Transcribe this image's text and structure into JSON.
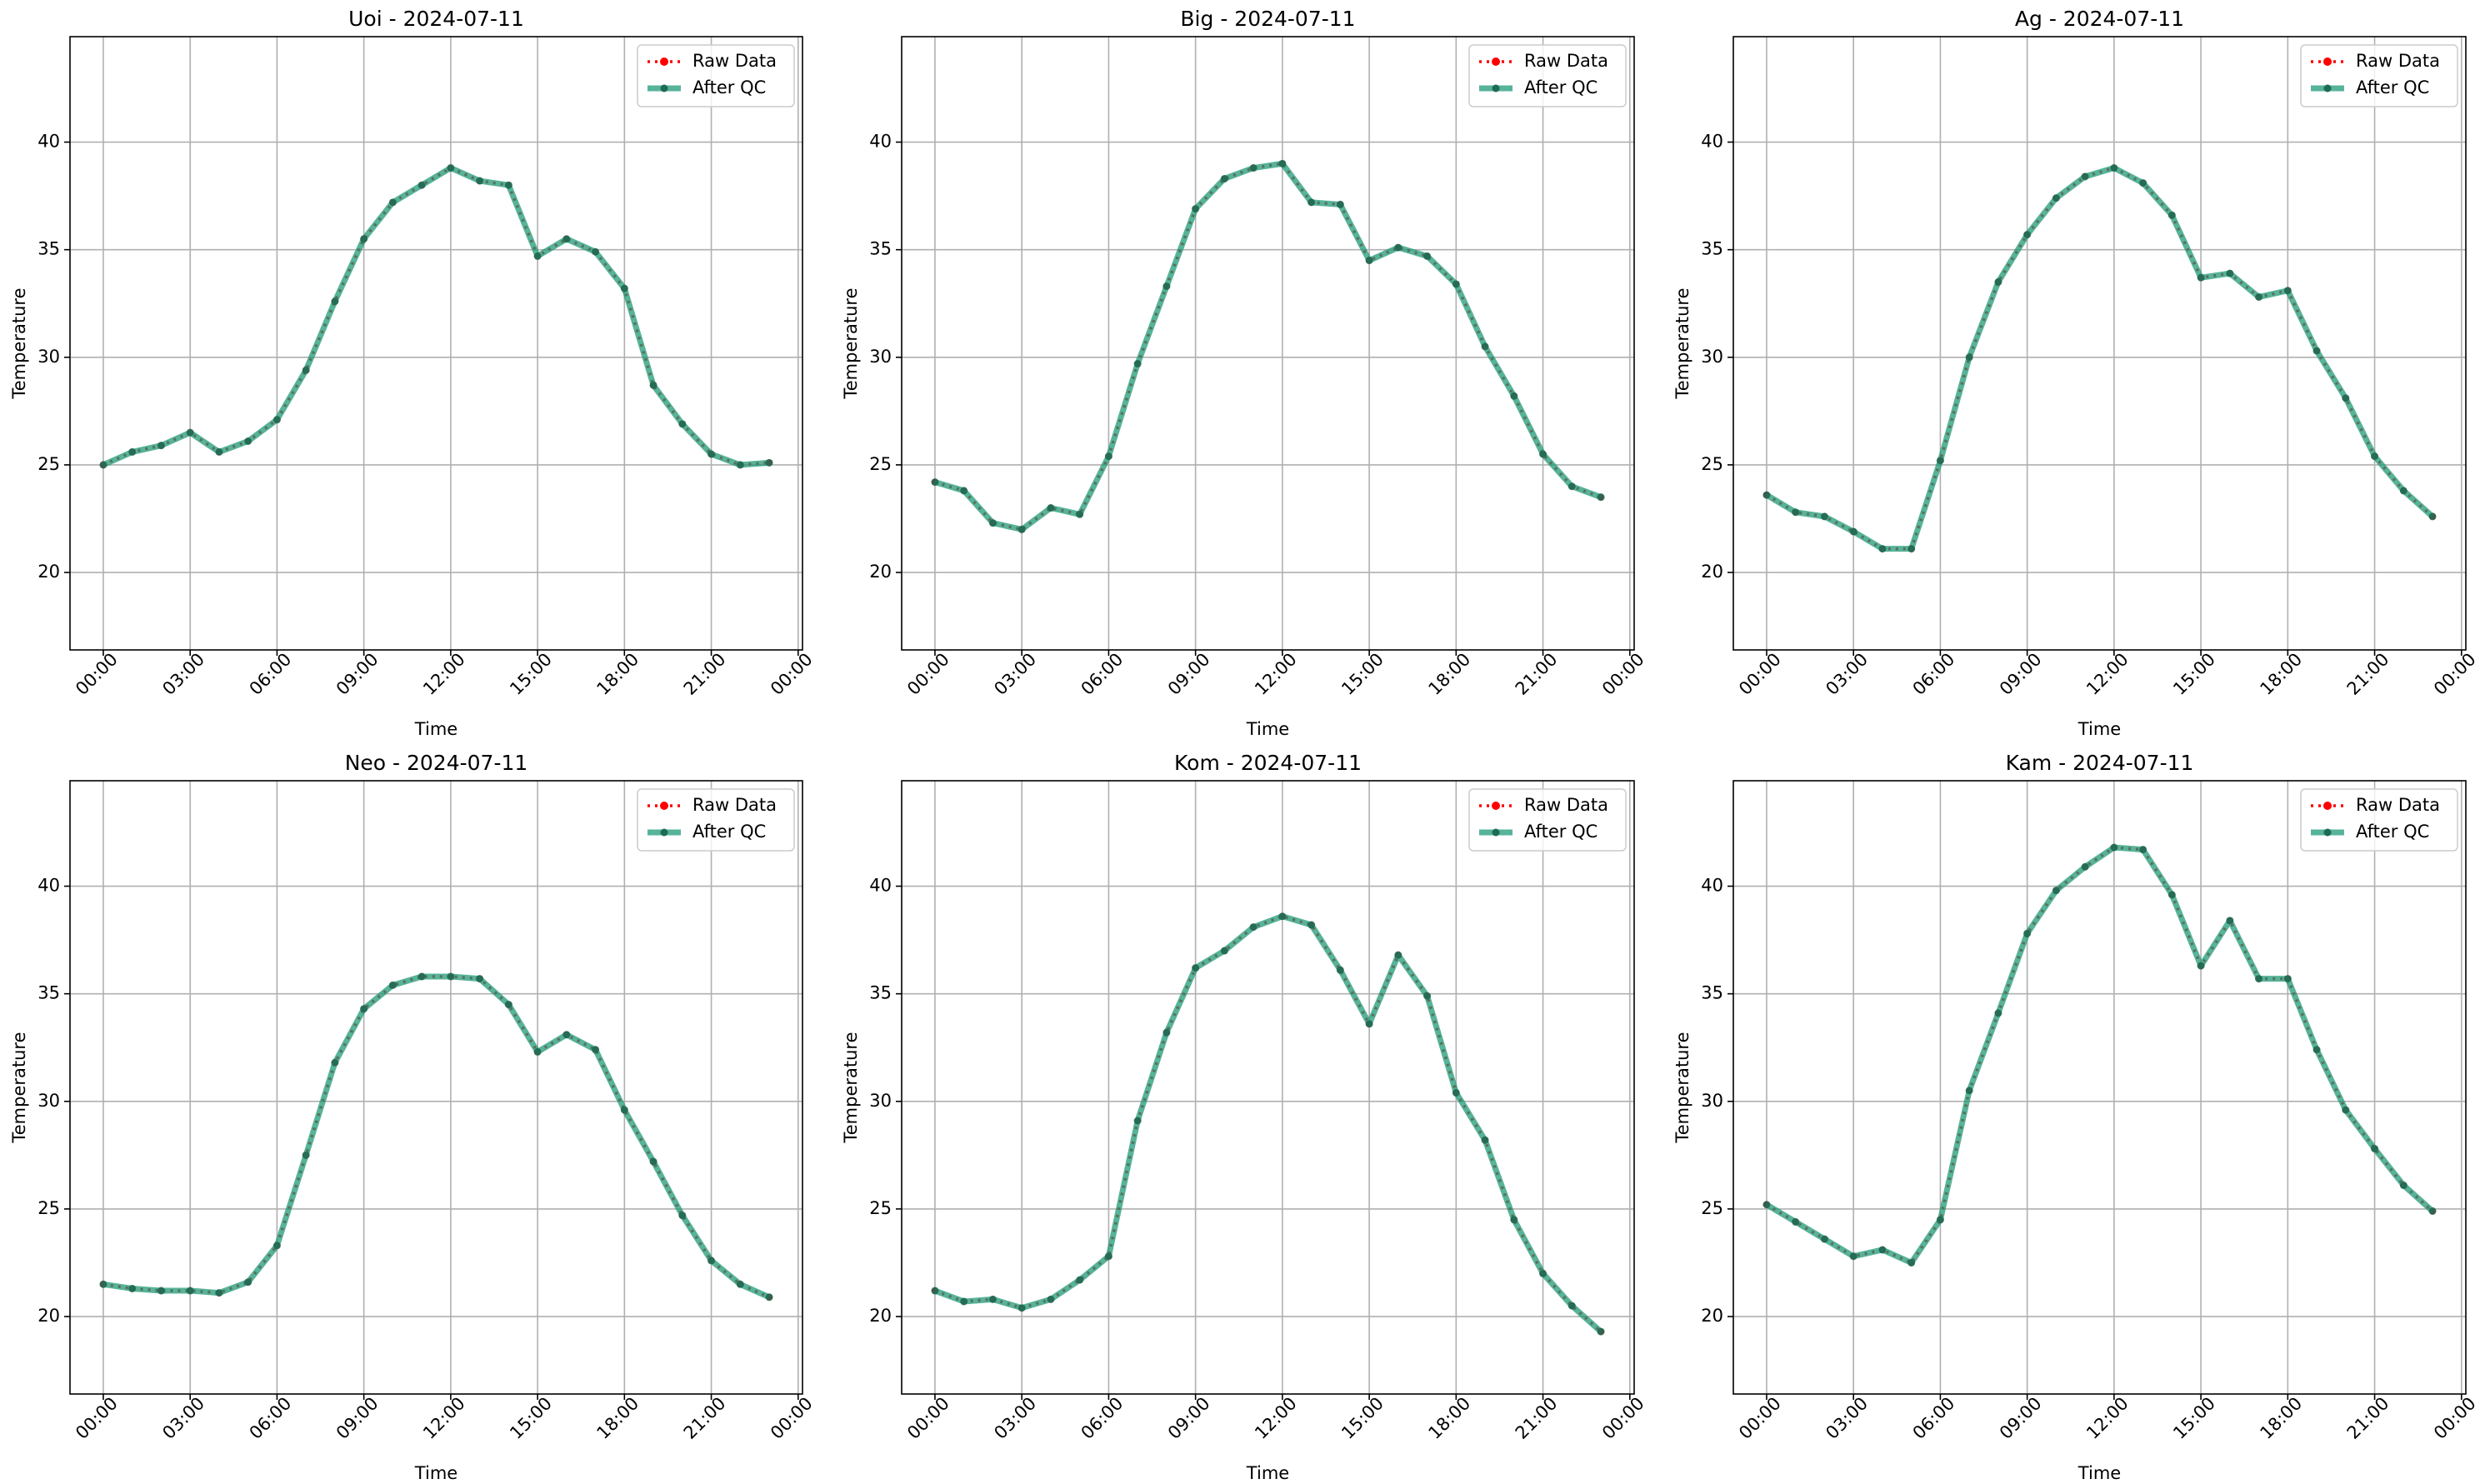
{
  "chart_data": [
    {
      "type": "line",
      "title": "Uoi - 2024-07-11",
      "xlabel": "Time",
      "ylabel": "Temperature",
      "x": [
        0,
        1,
        2,
        3,
        4,
        5,
        6,
        7,
        8,
        9,
        10,
        11,
        12,
        13,
        14,
        15,
        16,
        17,
        18,
        19,
        20,
        21,
        22,
        23
      ],
      "xlim": [
        -1.15,
        24.15
      ],
      "xticks": [
        {
          "value": 0,
          "label": "00:00"
        },
        {
          "value": 3,
          "label": "03:00"
        },
        {
          "value": 6,
          "label": "06:00"
        },
        {
          "value": 9,
          "label": "09:00"
        },
        {
          "value": 12,
          "label": "12:00"
        },
        {
          "value": 15,
          "label": "15:00"
        },
        {
          "value": 18,
          "label": "18:00"
        },
        {
          "value": 21,
          "label": "21:00"
        },
        {
          "value": 24,
          "label": "00:00"
        }
      ],
      "ylim": [
        16.4,
        44.9
      ],
      "yticks": [
        20,
        25,
        30,
        35,
        40
      ],
      "grid": true,
      "legend": "upper right",
      "series": [
        {
          "name": "Raw Data",
          "color": "#ff0000",
          "values": [
            25.0,
            25.6,
            25.9,
            26.5,
            25.6,
            26.1,
            27.1,
            29.4,
            32.6,
            35.5,
            37.2,
            38.0,
            38.8,
            38.2,
            38.0,
            34.7,
            35.5,
            34.9,
            33.2,
            28.7,
            26.9,
            25.5,
            25.0,
            25.1
          ]
        },
        {
          "name": "After QC",
          "color": "#1f9a78",
          "values": [
            25.0,
            25.6,
            25.9,
            26.5,
            25.6,
            26.1,
            27.1,
            29.4,
            32.6,
            35.5,
            37.2,
            38.0,
            38.8,
            38.2,
            38.0,
            34.7,
            35.5,
            34.9,
            33.2,
            28.7,
            26.9,
            25.5,
            25.0,
            25.1
          ]
        }
      ]
    },
    {
      "type": "line",
      "title": "Big - 2024-07-11",
      "xlabel": "Time",
      "ylabel": "Temperature",
      "x": [
        0,
        1,
        2,
        3,
        4,
        5,
        6,
        7,
        8,
        9,
        10,
        11,
        12,
        13,
        14,
        15,
        16,
        17,
        18,
        19,
        20,
        21,
        22,
        23
      ],
      "xlim": [
        -1.15,
        24.15
      ],
      "xticks": [
        {
          "value": 0,
          "label": "00:00"
        },
        {
          "value": 3,
          "label": "03:00"
        },
        {
          "value": 6,
          "label": "06:00"
        },
        {
          "value": 9,
          "label": "09:00"
        },
        {
          "value": 12,
          "label": "12:00"
        },
        {
          "value": 15,
          "label": "15:00"
        },
        {
          "value": 18,
          "label": "18:00"
        },
        {
          "value": 21,
          "label": "21:00"
        },
        {
          "value": 24,
          "label": "00:00"
        }
      ],
      "ylim": [
        16.4,
        44.9
      ],
      "yticks": [
        20,
        25,
        30,
        35,
        40
      ],
      "grid": true,
      "legend": "upper right",
      "series": [
        {
          "name": "Raw Data",
          "color": "#ff0000",
          "values": [
            24.2,
            23.8,
            22.3,
            22.0,
            23.0,
            22.7,
            25.4,
            29.7,
            33.3,
            36.9,
            38.3,
            38.8,
            39.0,
            37.2,
            37.1,
            34.5,
            35.1,
            34.7,
            33.4,
            30.5,
            28.2,
            25.5,
            24.0,
            23.5
          ]
        },
        {
          "name": "After QC",
          "color": "#1f9a78",
          "values": [
            24.2,
            23.8,
            22.3,
            22.0,
            23.0,
            22.7,
            25.4,
            29.7,
            33.3,
            36.9,
            38.3,
            38.8,
            39.0,
            37.2,
            37.1,
            34.5,
            35.1,
            34.7,
            33.4,
            30.5,
            28.2,
            25.5,
            24.0,
            23.5
          ]
        }
      ]
    },
    {
      "type": "line",
      "title": "Ag - 2024-07-11",
      "xlabel": "Time",
      "ylabel": "Temperature",
      "x": [
        0,
        1,
        2,
        3,
        4,
        5,
        6,
        7,
        8,
        9,
        10,
        11,
        12,
        13,
        14,
        15,
        16,
        17,
        18,
        19,
        20,
        21,
        22,
        23
      ],
      "xlim": [
        -1.15,
        24.15
      ],
      "xticks": [
        {
          "value": 0,
          "label": "00:00"
        },
        {
          "value": 3,
          "label": "03:00"
        },
        {
          "value": 6,
          "label": "06:00"
        },
        {
          "value": 9,
          "label": "09:00"
        },
        {
          "value": 12,
          "label": "12:00"
        },
        {
          "value": 15,
          "label": "15:00"
        },
        {
          "value": 18,
          "label": "18:00"
        },
        {
          "value": 21,
          "label": "21:00"
        },
        {
          "value": 24,
          "label": "00:00"
        }
      ],
      "ylim": [
        16.4,
        44.9
      ],
      "yticks": [
        20,
        25,
        30,
        35,
        40
      ],
      "grid": true,
      "legend": "upper right",
      "series": [
        {
          "name": "Raw Data",
          "color": "#ff0000",
          "values": [
            23.6,
            22.8,
            22.6,
            21.9,
            21.1,
            21.1,
            25.2,
            30.0,
            33.5,
            35.7,
            37.4,
            38.4,
            38.8,
            38.1,
            36.6,
            33.7,
            33.9,
            32.8,
            33.1,
            30.3,
            28.1,
            25.4,
            23.8,
            22.6
          ]
        },
        {
          "name": "After QC",
          "color": "#1f9a78",
          "values": [
            23.6,
            22.8,
            22.6,
            21.9,
            21.1,
            21.1,
            25.2,
            30.0,
            33.5,
            35.7,
            37.4,
            38.4,
            38.8,
            38.1,
            36.6,
            33.7,
            33.9,
            32.8,
            33.1,
            30.3,
            28.1,
            25.4,
            23.8,
            22.6
          ]
        }
      ]
    },
    {
      "type": "line",
      "title": "Neo - 2024-07-11",
      "xlabel": "Time",
      "ylabel": "Temperature",
      "x": [
        0,
        1,
        2,
        3,
        4,
        5,
        6,
        7,
        8,
        9,
        10,
        11,
        12,
        13,
        14,
        15,
        16,
        17,
        18,
        19,
        20,
        21,
        22,
        23
      ],
      "xlim": [
        -1.15,
        24.15
      ],
      "xticks": [
        {
          "value": 0,
          "label": "00:00"
        },
        {
          "value": 3,
          "label": "03:00"
        },
        {
          "value": 6,
          "label": "06:00"
        },
        {
          "value": 9,
          "label": "09:00"
        },
        {
          "value": 12,
          "label": "12:00"
        },
        {
          "value": 15,
          "label": "15:00"
        },
        {
          "value": 18,
          "label": "18:00"
        },
        {
          "value": 21,
          "label": "21:00"
        },
        {
          "value": 24,
          "label": "00:00"
        }
      ],
      "ylim": [
        16.4,
        44.9
      ],
      "yticks": [
        20,
        25,
        30,
        35,
        40
      ],
      "grid": true,
      "legend": "upper right",
      "series": [
        {
          "name": "Raw Data",
          "color": "#ff0000",
          "values": [
            21.5,
            21.3,
            21.2,
            21.2,
            21.1,
            21.6,
            23.3,
            27.5,
            31.8,
            34.3,
            35.4,
            35.8,
            35.8,
            35.7,
            34.5,
            32.3,
            33.1,
            32.4,
            29.6,
            27.2,
            24.7,
            22.6,
            21.5,
            20.9
          ]
        },
        {
          "name": "After QC",
          "color": "#1f9a78",
          "values": [
            21.5,
            21.3,
            21.2,
            21.2,
            21.1,
            21.6,
            23.3,
            27.5,
            31.8,
            34.3,
            35.4,
            35.8,
            35.8,
            35.7,
            34.5,
            32.3,
            33.1,
            32.4,
            29.6,
            27.2,
            24.7,
            22.6,
            21.5,
            20.9
          ]
        }
      ]
    },
    {
      "type": "line",
      "title": "Kom - 2024-07-11",
      "xlabel": "Time",
      "ylabel": "Temperature",
      "x": [
        0,
        1,
        2,
        3,
        4,
        5,
        6,
        7,
        8,
        9,
        10,
        11,
        12,
        13,
        14,
        15,
        16,
        17,
        18,
        19,
        20,
        21,
        22,
        23
      ],
      "xlim": [
        -1.15,
        24.15
      ],
      "xticks": [
        {
          "value": 0,
          "label": "00:00"
        },
        {
          "value": 3,
          "label": "03:00"
        },
        {
          "value": 6,
          "label": "06:00"
        },
        {
          "value": 9,
          "label": "09:00"
        },
        {
          "value": 12,
          "label": "12:00"
        },
        {
          "value": 15,
          "label": "15:00"
        },
        {
          "value": 18,
          "label": "18:00"
        },
        {
          "value": 21,
          "label": "21:00"
        },
        {
          "value": 24,
          "label": "00:00"
        }
      ],
      "ylim": [
        16.4,
        44.9
      ],
      "yticks": [
        20,
        25,
        30,
        35,
        40
      ],
      "grid": true,
      "legend": "upper right",
      "series": [
        {
          "name": "Raw Data",
          "color": "#ff0000",
          "values": [
            21.2,
            20.7,
            20.8,
            20.4,
            20.8,
            21.7,
            22.8,
            29.1,
            33.2,
            36.2,
            37.0,
            38.1,
            38.6,
            38.2,
            36.1,
            33.6,
            36.8,
            34.9,
            30.4,
            28.2,
            24.5,
            22.0,
            20.5,
            19.3
          ]
        },
        {
          "name": "After QC",
          "color": "#1f9a78",
          "values": [
            21.2,
            20.7,
            20.8,
            20.4,
            20.8,
            21.7,
            22.8,
            29.1,
            33.2,
            36.2,
            37.0,
            38.1,
            38.6,
            38.2,
            36.1,
            33.6,
            36.8,
            34.9,
            30.4,
            28.2,
            24.5,
            22.0,
            20.5,
            19.3
          ]
        }
      ]
    },
    {
      "type": "line",
      "title": "Kam - 2024-07-11",
      "xlabel": "Time",
      "ylabel": "Temperature",
      "x": [
        0,
        1,
        2,
        3,
        4,
        5,
        6,
        7,
        8,
        9,
        10,
        11,
        12,
        13,
        14,
        15,
        16,
        17,
        18,
        19,
        20,
        21,
        22,
        23
      ],
      "xlim": [
        -1.15,
        24.15
      ],
      "xticks": [
        {
          "value": 0,
          "label": "00:00"
        },
        {
          "value": 3,
          "label": "03:00"
        },
        {
          "value": 6,
          "label": "06:00"
        },
        {
          "value": 9,
          "label": "09:00"
        },
        {
          "value": 12,
          "label": "12:00"
        },
        {
          "value": 15,
          "label": "15:00"
        },
        {
          "value": 18,
          "label": "18:00"
        },
        {
          "value": 21,
          "label": "21:00"
        },
        {
          "value": 24,
          "label": "00:00"
        }
      ],
      "ylim": [
        16.4,
        44.9
      ],
      "yticks": [
        20,
        25,
        30,
        35,
        40
      ],
      "grid": true,
      "legend": "upper right",
      "series": [
        {
          "name": "Raw Data",
          "color": "#ff0000",
          "values": [
            25.2,
            24.4,
            23.6,
            22.8,
            23.1,
            22.5,
            24.5,
            30.5,
            34.1,
            37.8,
            39.8,
            40.9,
            41.8,
            41.7,
            39.6,
            36.3,
            38.4,
            35.7,
            35.7,
            32.4,
            29.6,
            27.8,
            26.1,
            24.9
          ]
        },
        {
          "name": "After QC",
          "color": "#1f9a78",
          "values": [
            25.2,
            24.4,
            23.6,
            22.8,
            23.1,
            22.5,
            24.5,
            30.5,
            34.1,
            37.8,
            39.8,
            40.9,
            41.8,
            41.7,
            39.6,
            36.3,
            38.4,
            35.7,
            35.7,
            32.4,
            29.6,
            27.8,
            26.1,
            24.9
          ]
        }
      ]
    }
  ]
}
